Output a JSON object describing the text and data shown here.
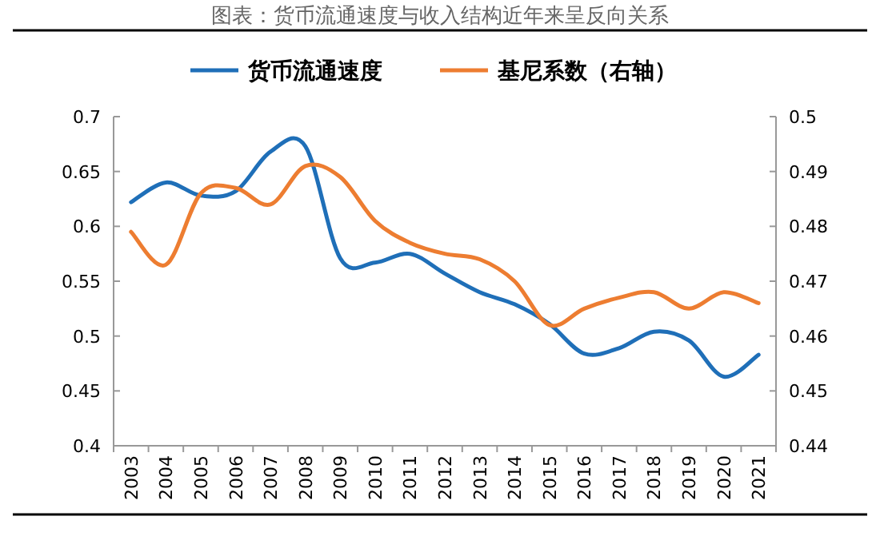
{
  "chart_data": {
    "type": "line",
    "title": "图表：货币流通速度与收入结构近年来呈反向关系",
    "categories": [
      "2003",
      "2004",
      "2005",
      "2006",
      "2007",
      "2008",
      "2009",
      "2010",
      "2011",
      "2012",
      "2013",
      "2014",
      "2015",
      "2016",
      "2017",
      "2018",
      "2019",
      "2020",
      "2021"
    ],
    "series": [
      {
        "name": "货币流通速度",
        "color": "#1f6fb8",
        "values": [
          0.622,
          0.64,
          0.628,
          0.632,
          0.668,
          0.673,
          0.571,
          0.567,
          0.575,
          0.557,
          0.54,
          0.529,
          0.511,
          0.484,
          0.489,
          0.504,
          0.496,
          0.463,
          0.483
        ]
      },
      {
        "name": "基尼系数（右轴）",
        "color": "#ed7d31",
        "axis": "y2",
        "values": [
          0.479,
          0.473,
          0.486,
          0.487,
          0.484,
          0.491,
          0.489,
          0.481,
          0.477,
          0.475,
          0.474,
          0.47,
          0.462,
          0.465,
          0.467,
          0.468,
          0.465,
          0.468,
          0.466
        ]
      }
    ],
    "ylim": [
      0.4,
      0.7
    ],
    "yticks": [
      0.4,
      0.45,
      0.5,
      0.55,
      0.6,
      0.65,
      0.7
    ],
    "y2lim": [
      0.44,
      0.5
    ],
    "y2ticks": [
      0.44,
      0.45,
      0.46,
      0.47,
      0.48,
      0.49,
      0.5
    ],
    "legend": "top",
    "grid": false
  }
}
